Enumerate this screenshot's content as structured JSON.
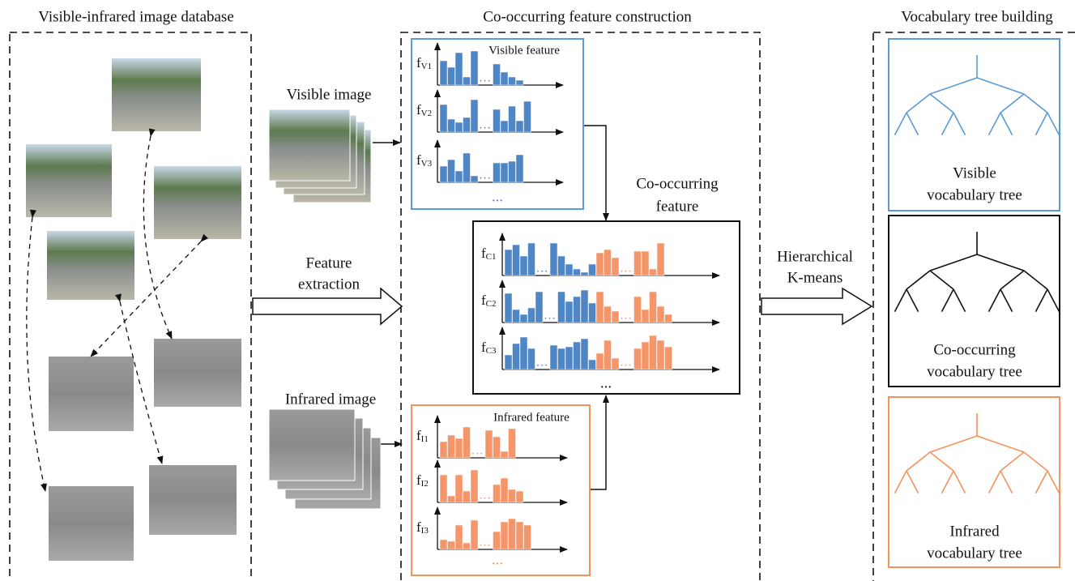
{
  "sections": [
    {
      "title": "Visible-infrared  image database"
    },
    {
      "title": "Co-occurring feature construction"
    },
    {
      "title": "Vocabulary tree building"
    }
  ],
  "labels": {
    "visible_image": "Visible image",
    "infrared_image": "Infrared image",
    "feature_extraction": [
      "Feature",
      "extraction"
    ],
    "co_occurring_feature": [
      "Co-occurring",
      "feature"
    ],
    "kmeans": [
      "Hierarchical",
      "K-means"
    ]
  },
  "panels": {
    "visible": {
      "title": "Visible feature",
      "rows": [
        {
          "f": "f",
          "sub": "V1"
        },
        {
          "f": "f",
          "sub": "V2"
        },
        {
          "f": "f",
          "sub": "V3"
        }
      ],
      "gap": "…",
      "more": "..."
    },
    "co_occurring": {
      "rows": [
        {
          "f": "f",
          "sub": "C1"
        },
        {
          "f": "f",
          "sub": "C2"
        },
        {
          "f": "f",
          "sub": "C3"
        }
      ],
      "gap": "…",
      "more": "..."
    },
    "infrared": {
      "title": "Infrared feature",
      "rows": [
        {
          "f": "f",
          "sub": "I1"
        },
        {
          "f": "f",
          "sub": "I2"
        },
        {
          "f": "f",
          "sub": "I3"
        }
      ],
      "gap": "…",
      "more": "..."
    }
  },
  "trees": [
    {
      "caption": [
        "Visible",
        "vocabulary tree"
      ]
    },
    {
      "caption": [
        "Co-occurring",
        "vocabulary tree"
      ]
    },
    {
      "caption": [
        "Infrared",
        "vocabulary tree"
      ]
    }
  ]
}
